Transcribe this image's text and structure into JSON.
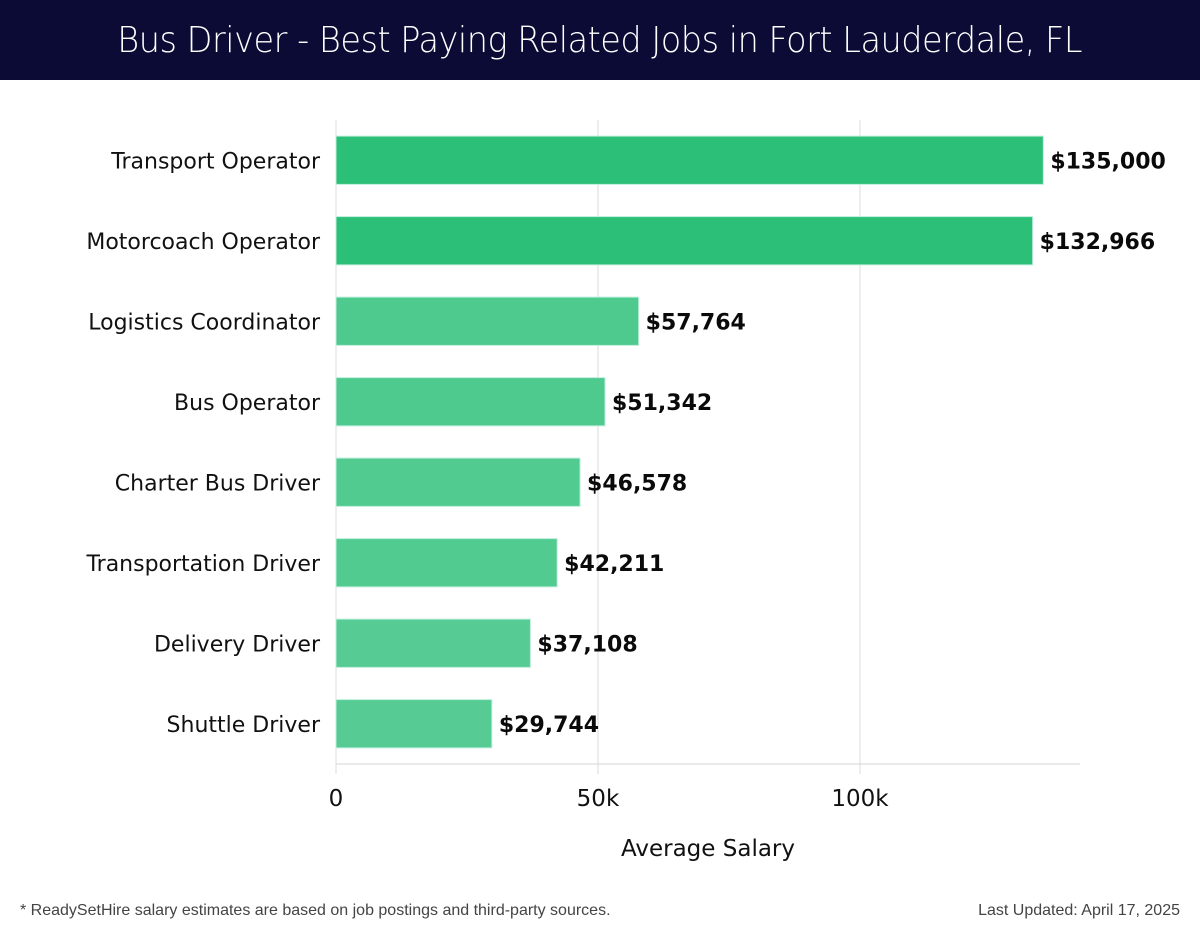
{
  "header": {
    "title": "Bus Driver - Best Paying Related Jobs in Fort Lauderdale, FL"
  },
  "chart_data": {
    "type": "bar",
    "orientation": "horizontal",
    "title": "Bus Driver - Best Paying Related Jobs in Fort Lauderdale, FL",
    "xlabel": "Average Salary",
    "ylabel": "",
    "xlim": [
      0,
      142000
    ],
    "grid": true,
    "xticks": [
      0,
      50000,
      100000
    ],
    "xtick_labels": [
      "0",
      "50k",
      "100k"
    ],
    "categories": [
      "Transport Operator",
      "Motorcoach Operator",
      "Logistics Coordinator",
      "Bus Operator",
      "Charter Bus Driver",
      "Transportation Driver",
      "Delivery Driver",
      "Shuttle Driver"
    ],
    "values": [
      135000,
      132966,
      57764,
      51342,
      46578,
      42211,
      37108,
      29744
    ],
    "data_labels": [
      "$135,000",
      "$132,966",
      "$57,764",
      "$51,342",
      "$46,578",
      "$42,211",
      "$37,108",
      "$29,744"
    ],
    "colors": [
      "#2cbf78",
      "#2cbf78",
      "#4fca8e",
      "#4fca8e",
      "#52cb90",
      "#52cb90",
      "#56cc94",
      "#56cc94"
    ]
  },
  "footer": {
    "note": "* ReadySetHire salary estimates are based on job postings and third-party sources.",
    "updated": "Last Updated: April 17, 2025"
  }
}
